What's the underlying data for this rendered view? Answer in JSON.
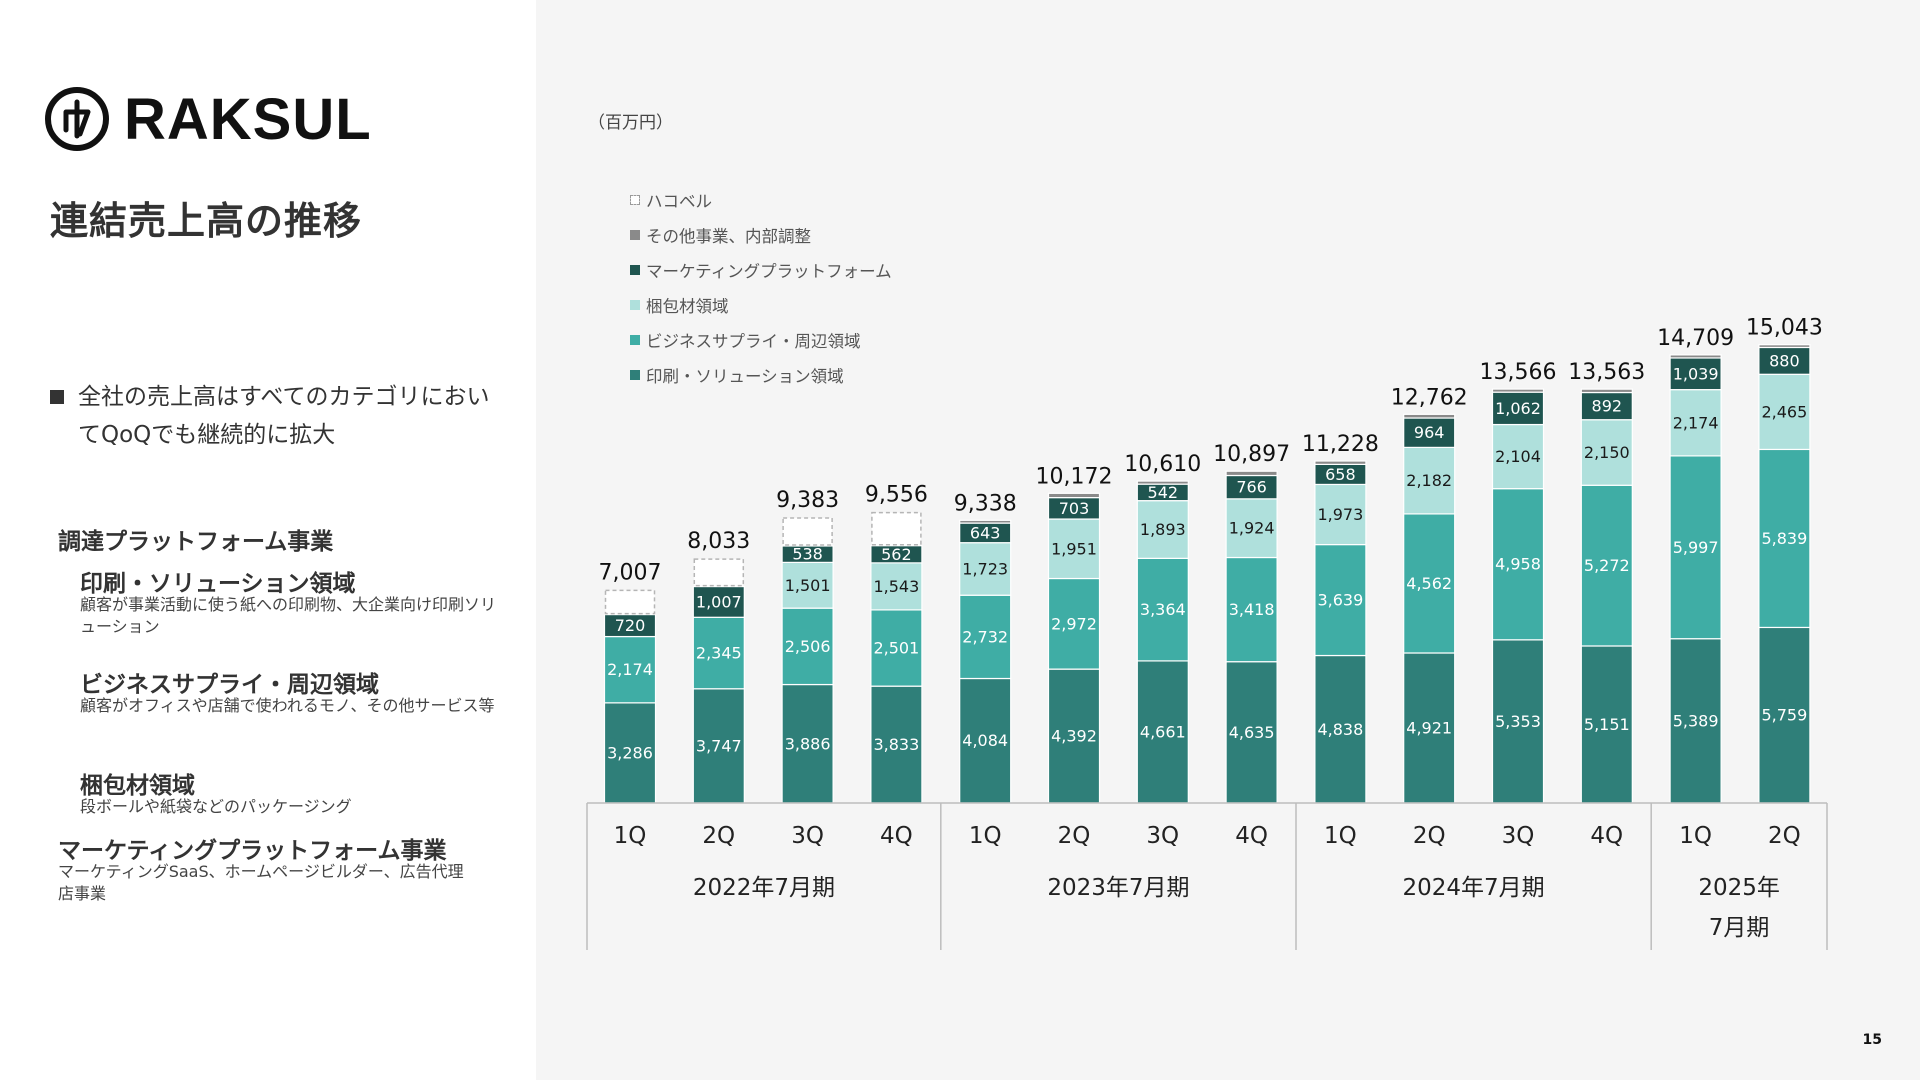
{
  "brand": {
    "name": "RAKSUL",
    "mark_glyph": "ラ"
  },
  "page": {
    "title": "連結売上高の推移",
    "number": "15"
  },
  "summary": {
    "bullet": "全社の売上高はすべてのカテゴリにおいてQoQでも継続的に拡大"
  },
  "categories_info": {
    "procurement_header": "調達プラットフォーム事業",
    "printing": {
      "title": "印刷・ソリューション領域",
      "desc": "顧客が事業活動に使う紙への印刷物、大企業向け印刷ソリューション"
    },
    "business": {
      "title": "ビジネスサプライ・周辺領域",
      "desc": "顧客がオフィスや店舗で使われるモノ、その他サービス等"
    },
    "packaging": {
      "title": "梱包材領域",
      "desc": "段ボールや紙袋などのパッケージング"
    },
    "marketing": {
      "title": "マーケティングプラットフォーム事業",
      "desc": "マーケティングSaaS、ホームページビルダー、広告代理店事業"
    }
  },
  "chart_data": {
    "type": "bar",
    "stacked": true,
    "unit_label": "（百万円）",
    "quarters": [
      "1Q",
      "2Q",
      "3Q",
      "4Q",
      "1Q",
      "2Q",
      "3Q",
      "4Q",
      "1Q",
      "2Q",
      "3Q",
      "4Q",
      "1Q",
      "2Q"
    ],
    "fiscal_years": [
      {
        "label": "2022年7月期",
        "count": 4
      },
      {
        "label": "2023年7月期",
        "count": 4
      },
      {
        "label": "2024年7月期",
        "count": 4
      },
      {
        "label": "2025年7月期",
        "count": 2
      }
    ],
    "totals": [
      7007,
      8033,
      9383,
      9556,
      9338,
      10172,
      10610,
      10897,
      11228,
      12762,
      13566,
      13563,
      14709,
      15043
    ],
    "total_labels": [
      "7,007",
      "8,033",
      "9,383",
      "9,556",
      "9,338",
      "10,172",
      "10,610",
      "10,897",
      "11,228",
      "12,762",
      "13,566",
      "13,563",
      "14,709",
      "15,043"
    ],
    "ylim": [
      0,
      16500
    ],
    "series": [
      {
        "name": "印刷・ソリューション領域",
        "color": "#2f7f79",
        "text_color": "#ffffff",
        "style": "solid",
        "values": [
          3286,
          3747,
          3886,
          3833,
          4084,
          4392,
          4661,
          4635,
          4838,
          4921,
          5353,
          5151,
          5389,
          5759
        ],
        "labels": [
          "3,286",
          "3,747",
          "3,886",
          "3,833",
          "4,084",
          "4,392",
          "4,661",
          "4,635",
          "4,838",
          "4,921",
          "5,353",
          "5,151",
          "5,389",
          "5,759"
        ]
      },
      {
        "name": "ビジネスサプライ・周辺領域",
        "color": "#3fada5",
        "text_color": "#ffffff",
        "style": "solid",
        "values": [
          2174,
          2345,
          2506,
          2501,
          2732,
          2972,
          3364,
          3418,
          3639,
          4562,
          4958,
          5272,
          5997,
          5839
        ],
        "labels": [
          "2,174",
          "2,345",
          "2,506",
          "2,501",
          "2,732",
          "2,972",
          "3,364",
          "3,418",
          "3,639",
          "4,562",
          "4,958",
          "5,272",
          "5,997",
          "5,839"
        ]
      },
      {
        "name": "梱包材領域",
        "color": "#afe0dc",
        "text_color": "#1a1a1a",
        "style": "solid",
        "values": [
          0,
          0,
          1501,
          1543,
          1723,
          1951,
          1893,
          1924,
          1973,
          2182,
          2104,
          2150,
          2174,
          2465
        ],
        "labels": [
          "",
          "",
          "1,501",
          "1,543",
          "1,723",
          "1,951",
          "1,893",
          "1,924",
          "1,973",
          "2,182",
          "2,104",
          "2,150",
          "2,174",
          "2,465"
        ]
      },
      {
        "name": "マーケティングプラットフォーム",
        "color": "#1f5550",
        "text_color": "#ffffff",
        "style": "solid",
        "values": [
          720,
          1007,
          538,
          562,
          643,
          703,
          542,
          766,
          658,
          964,
          1062,
          892,
          1039,
          880
        ],
        "labels": [
          "720",
          "1,007",
          "538",
          "562",
          "643",
          "703",
          "542",
          "766",
          "658",
          "964",
          "1,062",
          "892",
          "1,039",
          "880"
        ]
      },
      {
        "name": "その他事業、内部調整",
        "color": "#8a8a8a",
        "text_color": "#ffffff",
        "style": "solid",
        "values": [
          0,
          0,
          0,
          0,
          90,
          140,
          100,
          140,
          110,
          120,
          100,
          110,
          100,
          90
        ],
        "labels": []
      },
      {
        "name": "ハコベル",
        "color": "#ffffff",
        "text_color": "#111111",
        "style": "dashed",
        "values": [
          827,
          934,
          952,
          1117,
          0,
          0,
          0,
          0,
          0,
          0,
          0,
          0,
          0,
          0
        ],
        "labels": []
      }
    ],
    "legend_order": [
      5,
      4,
      3,
      2,
      1,
      0
    ]
  }
}
